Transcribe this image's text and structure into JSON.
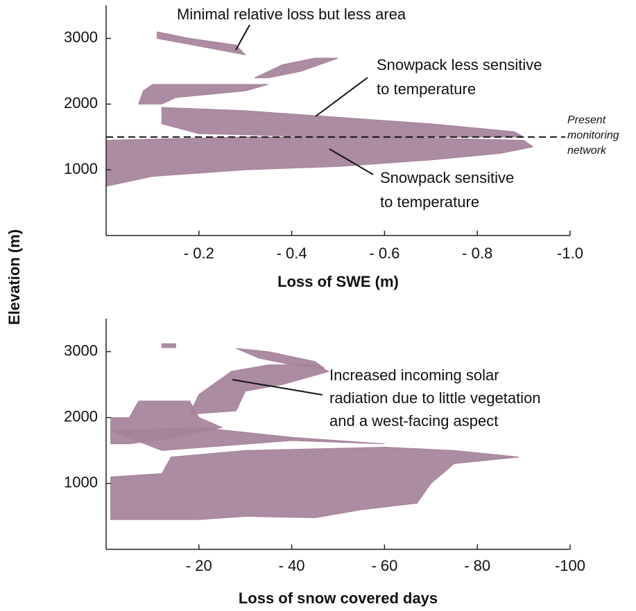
{
  "chart_data": [
    {
      "type": "region",
      "xlabel": "Loss of SWE (m)",
      "ylabel": "Elevation (m)",
      "xlim": [
        0,
        -1
      ],
      "ylim": [
        0,
        3500
      ],
      "xticks": [
        {
          "value": -0.2,
          "label": "- 0.2"
        },
        {
          "value": -0.4,
          "label": "- 0.4"
        },
        {
          "value": -0.6,
          "label": "- 0.6"
        },
        {
          "value": -0.8,
          "label": "- 0.8"
        },
        {
          "value": -1,
          "label": "-1.0"
        }
      ],
      "yticks": [
        1000,
        2000,
        3000
      ],
      "color": "#a5829a",
      "series": [
        {
          "x": [
            0,
            -0.1,
            -0.3,
            -0.5,
            -0.7,
            -0.85,
            -0.92,
            -0.9,
            -0.6,
            -0.3,
            0
          ],
          "y": [
            750,
            900,
            1000,
            1050,
            1150,
            1250,
            1350,
            1450,
            1500,
            1500,
            1450
          ]
        },
        {
          "x": [
            -0.12,
            -0.3,
            -0.5,
            -0.7,
            -0.88,
            -0.9,
            -0.5,
            -0.2,
            -0.12
          ],
          "y": [
            1950,
            1900,
            1800,
            1700,
            1580,
            1500,
            1500,
            1550,
            1700
          ]
        },
        {
          "x": [
            -0.07,
            -0.08,
            -0.1,
            -0.35,
            -0.3,
            -0.15,
            -0.12
          ],
          "y": [
            2000,
            2200,
            2300,
            2300,
            2200,
            2100,
            2000
          ]
        },
        {
          "x": [
            -0.32,
            -0.38,
            -0.45,
            -0.5,
            -0.42,
            -0.35
          ],
          "y": [
            2400,
            2600,
            2700,
            2700,
            2500,
            2400
          ]
        },
        {
          "x": [
            -0.11,
            -0.11,
            -0.3,
            -0.28,
            -0.18
          ],
          "y": [
            3100,
            3000,
            2750,
            2900,
            3000
          ]
        }
      ],
      "reference_line": {
        "value": 1500,
        "label": [
          "Present",
          "monitoring",
          "network"
        ]
      },
      "annotations": [
        {
          "text": [
            "Minimal relative loss but less area"
          ]
        },
        {
          "text": [
            "Snowpack less sensitive",
            "to temperature"
          ]
        },
        {
          "text": [
            "Snowpack sensitive",
            "to temperature"
          ]
        }
      ]
    },
    {
      "type": "region",
      "xlabel": "Loss of snow covered days",
      "xlim": [
        0,
        -100
      ],
      "ylim": [
        0,
        3500
      ],
      "xticks": [
        {
          "value": -20,
          "label": "- 20"
        },
        {
          "value": -40,
          "label": "- 40"
        },
        {
          "value": -60,
          "label": "- 60"
        },
        {
          "value": -80,
          "label": "- 80"
        },
        -100
      ],
      "yticks": [
        1000,
        2000,
        3000
      ],
      "color": "#a5829a",
      "series": [
        {
          "x": [
            -1,
            -1,
            -12,
            -14,
            -30,
            -60,
            -75,
            -89,
            -75,
            -70,
            -67,
            -55,
            -45,
            -30,
            -20
          ],
          "y": [
            450,
            1100,
            1150,
            1400,
            1500,
            1550,
            1500,
            1400,
            1300,
            1000,
            700,
            600,
            480,
            500,
            450
          ]
        },
        {
          "x": [
            -12,
            -40,
            -60,
            -40,
            -20,
            -1
          ],
          "y": [
            1500,
            1650,
            1600,
            1700,
            1850,
            1800
          ]
        },
        {
          "x": [
            -1,
            -1,
            -5,
            -7,
            -18,
            -20,
            -25,
            -15,
            -5
          ],
          "y": [
            1600,
            2000,
            2000,
            2250,
            2250,
            2000,
            1850,
            1700,
            1600
          ]
        },
        {
          "x": [
            -18,
            -20,
            -27,
            -35,
            -45,
            -48,
            -38,
            -30,
            -28
          ],
          "y": [
            2050,
            2350,
            2700,
            2800,
            2800,
            2700,
            2500,
            2400,
            2100
          ]
        },
        {
          "x": [
            -28,
            -35,
            -45,
            -47,
            -40,
            -33
          ],
          "y": [
            3050,
            3000,
            2850,
            2750,
            2800,
            2900
          ]
        },
        {
          "x": [
            -12,
            -15,
            -15,
            -12
          ],
          "y": [
            3120,
            3120,
            3060,
            3060
          ]
        }
      ],
      "annotations": [
        {
          "text": [
            "Increased incoming solar",
            "radiation due to little vegetation",
            "and a west-facing aspect"
          ]
        }
      ]
    }
  ]
}
